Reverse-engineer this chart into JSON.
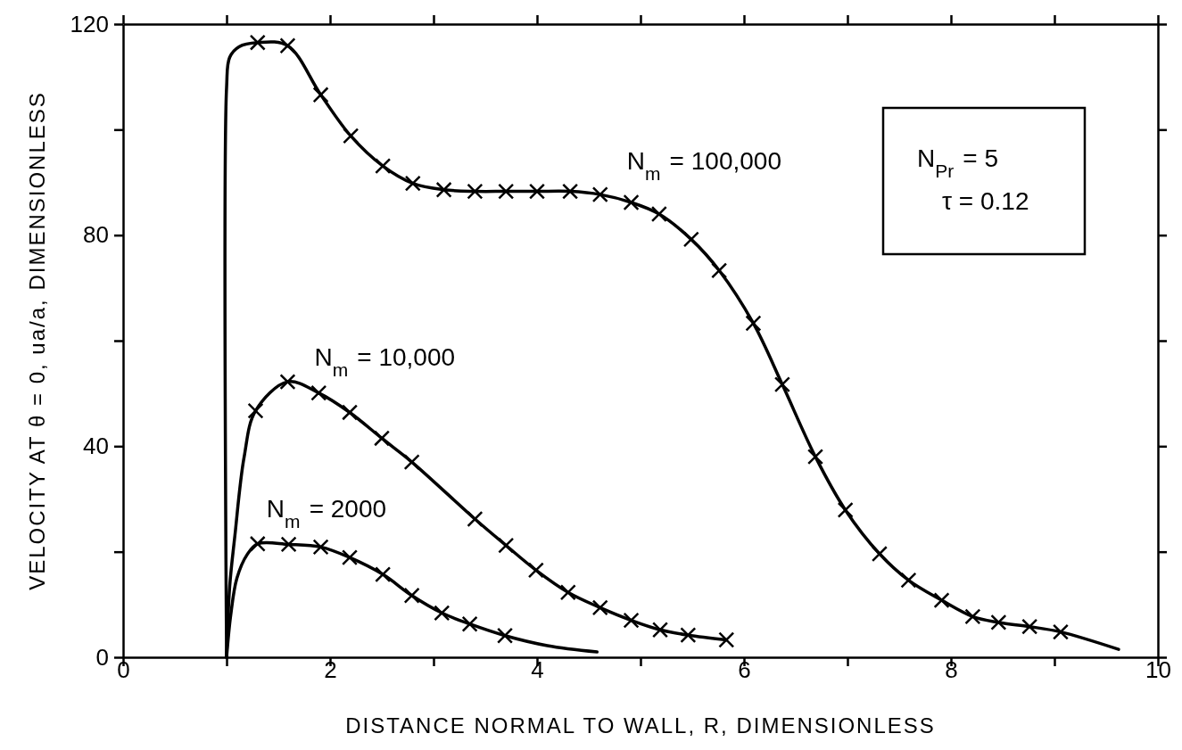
{
  "chart_data": {
    "type": "line",
    "xlabel": "DISTANCE NORMAL TO WALL, R, DIMENSIONLESS",
    "ylabel": "VELOCITY AT θ = 0, ua/a, DIMENSIONLESS",
    "xlim": [
      0,
      10
    ],
    "ylim": [
      0,
      120
    ],
    "xticks": [
      0,
      {
        "value": 1,
        "label": null
      },
      2,
      {
        "value": 3,
        "label": null
      },
      4,
      {
        "value": 5,
        "label": null
      },
      6,
      {
        "value": 7,
        "label": null
      },
      8,
      {
        "value": 9,
        "label": null
      },
      10
    ],
    "yticks": [
      0,
      {
        "value": 20,
        "label": null
      },
      40,
      {
        "value": 60,
        "label": null
      },
      80,
      {
        "value": 100,
        "label": null
      },
      120
    ],
    "grid": false,
    "line_style": "solid",
    "annotations": [
      "N$_{Pr}$ = 5",
      "τ = 0.12"
    ],
    "series": [
      {
        "name": "N$_{m}$ = 100,000",
        "color": "#000000",
        "x": [
          1,
          1,
          1.03,
          1.12,
          1.3,
          1.59,
          1.91,
          2.2,
          2.51,
          2.8,
          3.1,
          3.4,
          3.7,
          4,
          4.32,
          4.61,
          4.91,
          5.18,
          5.49,
          5.76,
          6.09,
          6.37,
          6.69,
          6.98,
          7.31,
          7.59,
          7.91,
          8.21,
          8.46,
          8.76,
          9.06,
          9.62
        ],
        "values": [
          0,
          108,
          113.7,
          115.7,
          116.5,
          115.9,
          106.6,
          98.8,
          93.1,
          89.8,
          88.6,
          88.3,
          88.3,
          88.3,
          88.3,
          87.7,
          86.2,
          84,
          79.2,
          73.3,
          63.3,
          51.7,
          38,
          27.9,
          19.6,
          14.6,
          10.8,
          7.7,
          6.6,
          5.8,
          4.8,
          1.5
        ]
      },
      {
        "type": "scatter",
        "marker": "cross",
        "color": "#000000",
        "x": [
          1.3,
          1.59,
          1.91,
          2.2,
          2.51,
          2.8,
          3.1,
          3.4,
          3.7,
          4,
          4.32,
          4.61,
          4.91,
          5.18,
          5.49,
          5.76,
          6.09,
          6.37,
          6.69,
          6.98,
          7.31,
          7.59,
          7.91,
          8.21,
          8.46,
          8.76,
          9.06
        ],
        "values": [
          116.5,
          115.9,
          106.6,
          98.8,
          93.1,
          89.8,
          88.6,
          88.3,
          88.3,
          88.3,
          88.3,
          87.7,
          86.2,
          84,
          79.2,
          73.3,
          63.3,
          51.7,
          38,
          27.9,
          19.6,
          14.6,
          10.8,
          7.7,
          6.6,
          5.8,
          4.8
        ]
      },
      {
        "name": "N$_{m}$ = 10,000",
        "color": "#000000",
        "x": [
          1,
          1.03,
          1.08,
          1.17,
          1.28,
          1.59,
          1.89,
          2.19,
          2.5,
          2.79,
          3.4,
          3.7,
          3.99,
          4.3,
          4.61,
          4.91,
          5.19,
          5.46,
          5.83
        ],
        "values": [
          0,
          13.4,
          23,
          38,
          46.7,
          52.2,
          50.1,
          46.4,
          41.5,
          37,
          26.2,
          21.2,
          16.5,
          12.3,
          9.4,
          7,
          5.2,
          4.2,
          3.3
        ]
      },
      {
        "type": "scatter",
        "marker": "cross",
        "color": "#000000",
        "x": [
          1.28,
          1.59,
          1.89,
          2.19,
          2.5,
          2.79,
          3.4,
          3.7,
          3.99,
          4.3,
          4.61,
          4.91,
          5.19,
          5.46,
          5.83
        ],
        "values": [
          46.7,
          52.2,
          50.1,
          46.4,
          41.5,
          37,
          26.2,
          21.2,
          16.5,
          12.3,
          9.4,
          7,
          5.2,
          4.2,
          3.3
        ]
      },
      {
        "name": "N$_{m}$ = 2000",
        "color": "#000000",
        "x": [
          1,
          1.04,
          1.1,
          1.2,
          1.3,
          1.6,
          1.91,
          2.19,
          2.51,
          2.79,
          3.08,
          3.35,
          3.69,
          4.1,
          4.58
        ],
        "values": [
          0,
          8,
          15,
          19.5,
          21.5,
          21.4,
          20.9,
          18.9,
          15.7,
          11.7,
          8.4,
          6.3,
          4.1,
          2.2,
          1
        ]
      },
      {
        "type": "scatter",
        "marker": "cross",
        "color": "#000000",
        "x": [
          1.3,
          1.6,
          1.91,
          2.19,
          2.51,
          2.79,
          3.08,
          3.35,
          3.69
        ],
        "values": [
          21.5,
          21.4,
          20.9,
          18.9,
          15.7,
          11.7,
          8.4,
          6.3,
          4.1
        ]
      }
    ]
  }
}
